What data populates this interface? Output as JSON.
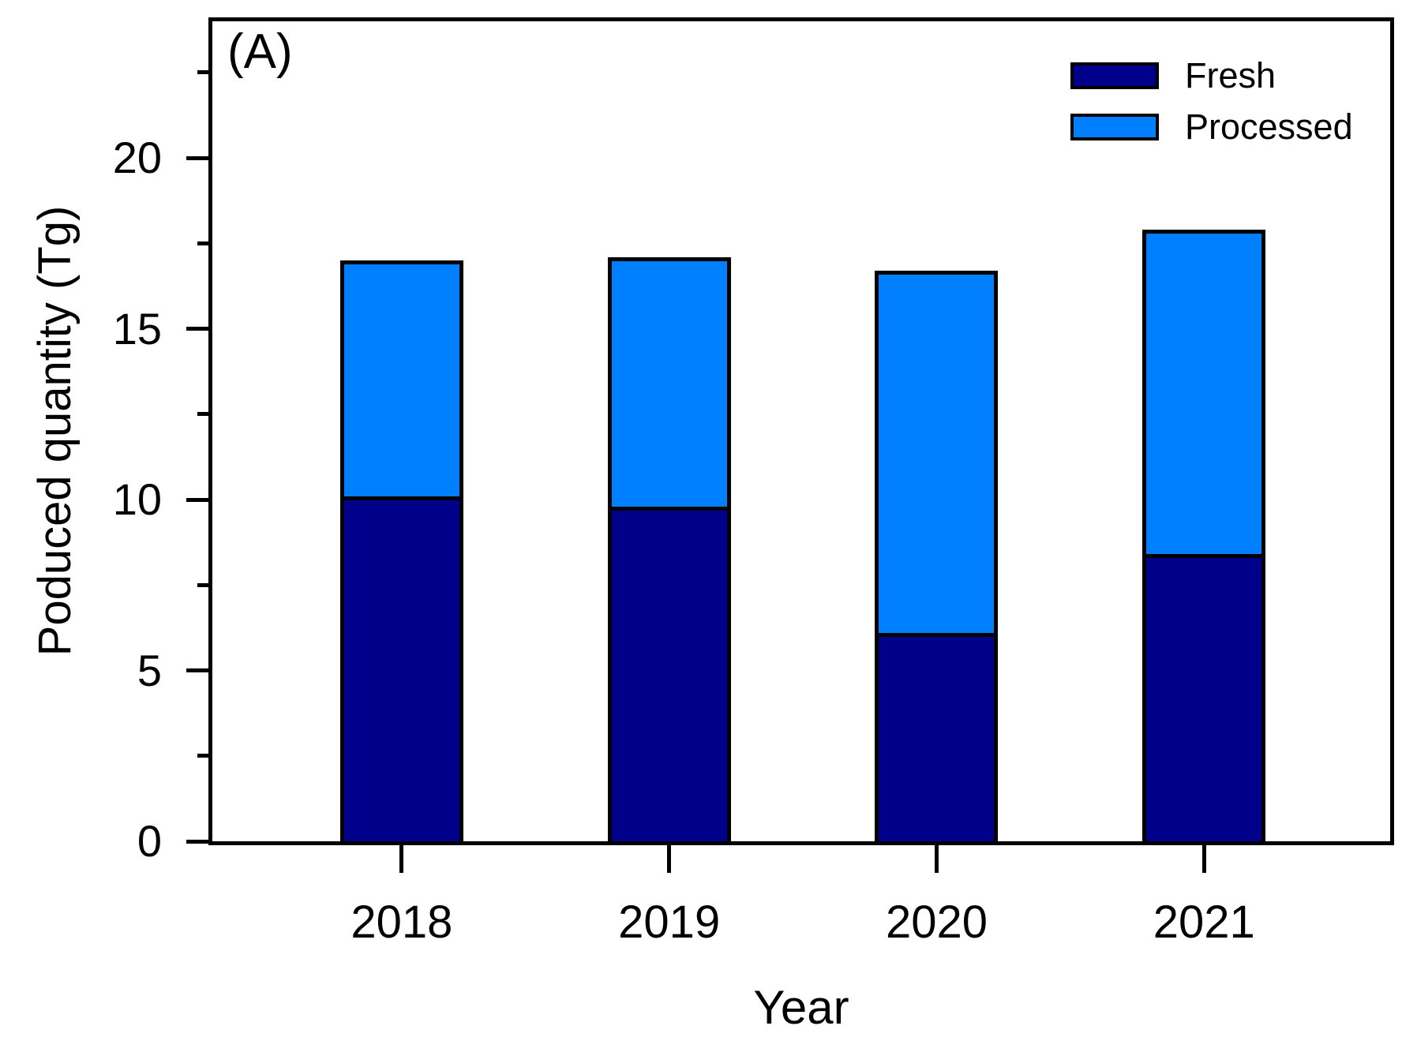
{
  "panel_label": "(A)",
  "chart_data": {
    "type": "bar",
    "stacked": true,
    "title": "(A)",
    "xlabel": "Year",
    "ylabel": "Poduced quantity (Tg)",
    "categories": [
      "2018",
      "2019",
      "2020",
      "2021"
    ],
    "series": [
      {
        "name": "Fresh",
        "color": "#00008B",
        "values": [
          10.1,
          9.8,
          6.1,
          8.4
        ]
      },
      {
        "name": "Processed",
        "color": "#0080FF",
        "values": [
          6.9,
          7.3,
          10.6,
          9.5
        ]
      }
    ],
    "stack_totals": [
      17.0,
      17.1,
      16.7,
      17.9
    ],
    "ylim": [
      0,
      24
    ],
    "yticks_major": [
      0,
      5,
      10,
      15,
      20
    ],
    "yticks_minor": [
      2.5,
      7.5,
      12.5,
      17.5,
      22.5
    ],
    "grid": false,
    "frame": true,
    "bar_border_color": "#000000",
    "background_color": "#FFFFFF",
    "legend_position": "top-right"
  }
}
